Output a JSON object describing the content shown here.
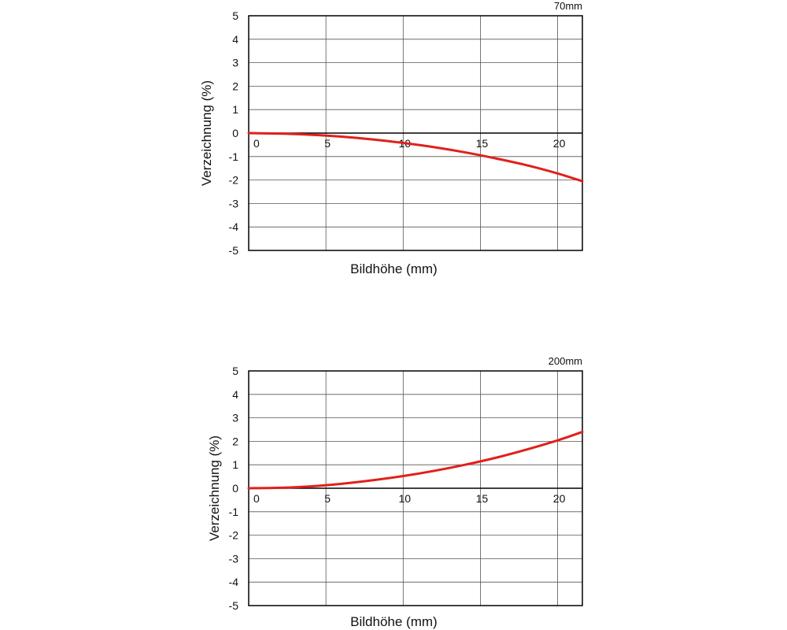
{
  "chart_data": [
    {
      "type": "line",
      "focal_label": "70mm",
      "xlabel": "Bildhöhe (mm)",
      "ylabel": "Verzeichnung (%)",
      "xlim": [
        0,
        21.6
      ],
      "ylim": [
        -5,
        5
      ],
      "xticks": [
        0,
        5,
        10,
        15,
        20
      ],
      "yticks": [
        5,
        4,
        3,
        2,
        1,
        0,
        -1,
        -2,
        -3,
        -4,
        -5
      ],
      "grid": true,
      "series": [
        {
          "color": "#e0201c",
          "x": [
            0,
            2,
            4,
            6,
            8,
            10,
            12,
            14,
            16,
            18,
            20,
            21.6
          ],
          "y": [
            0,
            -0.02,
            -0.07,
            -0.15,
            -0.27,
            -0.42,
            -0.6,
            -0.82,
            -1.08,
            -1.37,
            -1.72,
            -2.05
          ]
        }
      ]
    },
    {
      "type": "line",
      "focal_label": "200mm",
      "xlabel": "Bildhöhe (mm)",
      "ylabel": "Verzeichnung (%)",
      "xlim": [
        0,
        21.6
      ],
      "ylim": [
        -5,
        5
      ],
      "xticks": [
        0,
        5,
        10,
        15,
        20
      ],
      "yticks": [
        5,
        4,
        3,
        2,
        1,
        0,
        -1,
        -2,
        -3,
        -4,
        -5
      ],
      "grid": true,
      "series": [
        {
          "color": "#e0201c",
          "x": [
            0,
            2,
            4,
            6,
            8,
            10,
            12,
            14,
            16,
            18,
            20,
            21.6
          ],
          "y": [
            0,
            0.02,
            0.08,
            0.19,
            0.34,
            0.52,
            0.74,
            1.0,
            1.3,
            1.65,
            2.04,
            2.4
          ]
        }
      ]
    }
  ]
}
